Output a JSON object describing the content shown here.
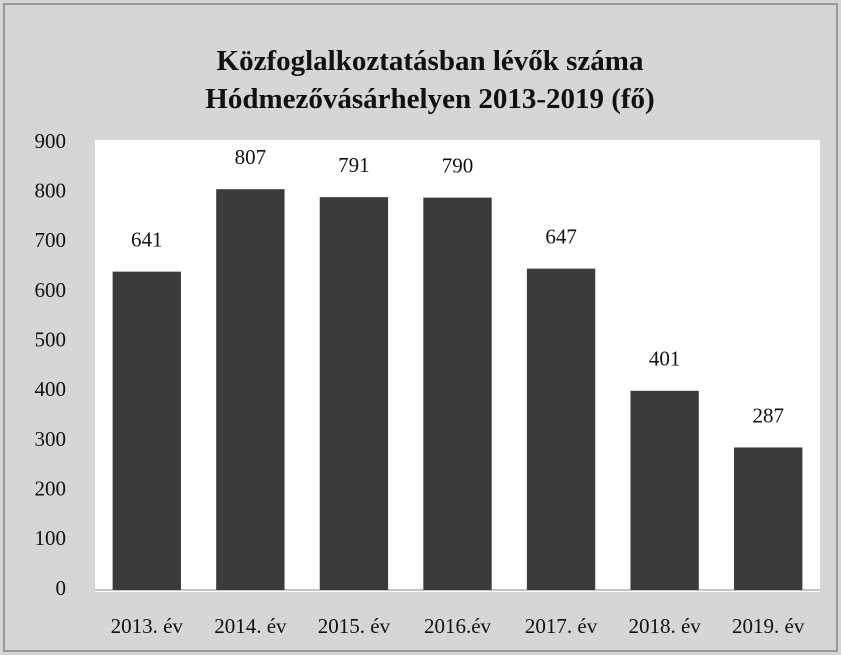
{
  "chart_data": {
    "type": "bar",
    "title": "Közfoglalkoztatásban lévők száma Hódmezővásárhelyen 2013-2019 (fő)",
    "categories": [
      "2013. év",
      "2014. év",
      "2015. év",
      "2016.év",
      "2017. év",
      "2018. év",
      "2019. év"
    ],
    "values": [
      641,
      807,
      791,
      790,
      647,
      401,
      287
    ],
    "color": "#3b3b3b",
    "ylim": [
      0,
      900
    ],
    "yticks": [
      0,
      100,
      200,
      300,
      400,
      500,
      600,
      700,
      800,
      900
    ],
    "grid": false
  }
}
